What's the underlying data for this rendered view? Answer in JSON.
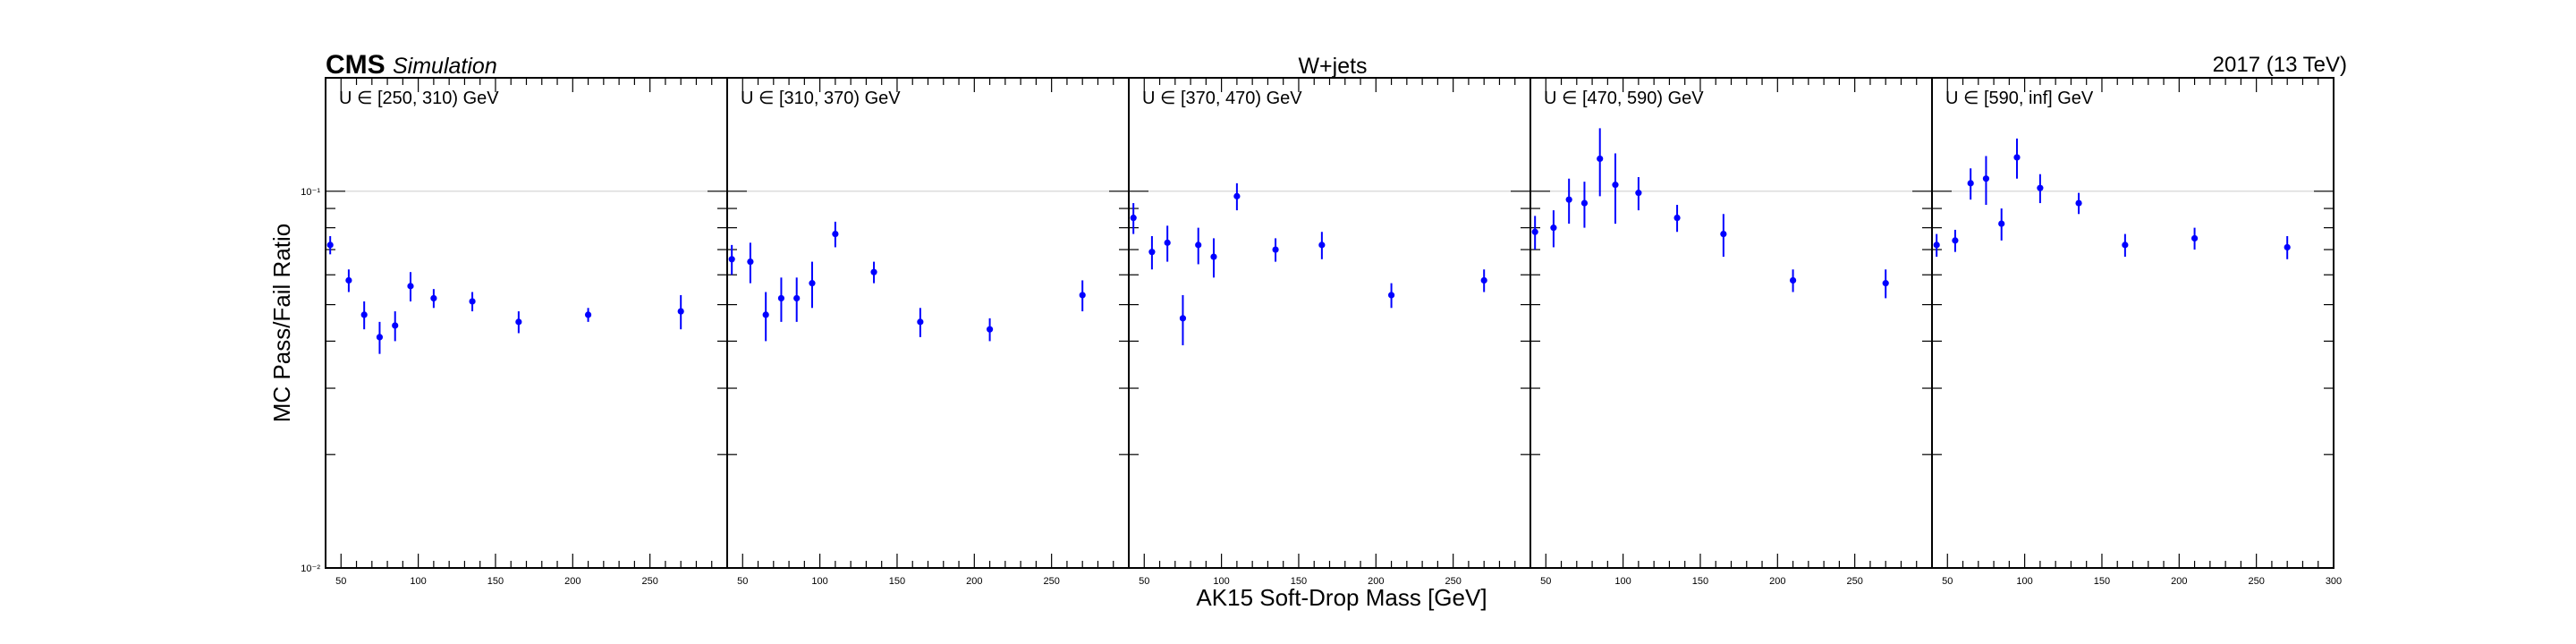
{
  "header": {
    "experiment": "CMS",
    "label": "Simulation",
    "process": "W+jets",
    "lumi": "2017 (13 TeV)"
  },
  "chart_data": {
    "type": "scatter",
    "xlabel": "AK15 Soft-Drop Mass [GeV]",
    "ylabel": "MC Pass/Fail Ratio",
    "xlim": [
      40,
      300
    ],
    "ylim": [
      0.01,
      0.2
    ],
    "yscale": "log",
    "grid": "horizontal line at 0.1",
    "y_tick_labels": [
      "10⁻²",
      "10⁻¹"
    ],
    "x_tick_labels": [
      "50",
      "100",
      "150",
      "200",
      "250"
    ],
    "last_x_tick_label": "300",
    "marker_color": "#0000ff",
    "panels": [
      {
        "label": "U ∈ [250, 310) GeV",
        "x": [
          43,
          55,
          65,
          75,
          85,
          95,
          110,
          135,
          165,
          210,
          270
        ],
        "y": [
          0.072,
          0.058,
          0.047,
          0.041,
          0.044,
          0.056,
          0.052,
          0.051,
          0.045,
          0.047,
          0.048
        ],
        "yerr": [
          0.004,
          0.004,
          0.004,
          0.004,
          0.004,
          0.005,
          0.003,
          0.003,
          0.003,
          0.002,
          0.005
        ]
      },
      {
        "label": "U ∈ [310, 370) GeV",
        "x": [
          43,
          55,
          65,
          75,
          85,
          95,
          110,
          135,
          165,
          210,
          270
        ],
        "y": [
          0.066,
          0.065,
          0.047,
          0.052,
          0.052,
          0.057,
          0.077,
          0.061,
          0.045,
          0.043,
          0.053
        ],
        "yerr": [
          0.006,
          0.008,
          0.007,
          0.007,
          0.007,
          0.008,
          0.006,
          0.004,
          0.004,
          0.003,
          0.005
        ]
      },
      {
        "label": "U ∈ [370, 470) GeV",
        "x": [
          43,
          55,
          65,
          75,
          85,
          95,
          110,
          135,
          165,
          210,
          270
        ],
        "y": [
          0.085,
          0.069,
          0.073,
          0.046,
          0.072,
          0.067,
          0.097,
          0.07,
          0.072,
          0.053,
          0.058
        ],
        "yerr": [
          0.008,
          0.007,
          0.008,
          0.007,
          0.008,
          0.008,
          0.008,
          0.005,
          0.006,
          0.004,
          0.004
        ]
      },
      {
        "label": "U ∈ [470, 590) GeV",
        "x": [
          43,
          55,
          65,
          75,
          85,
          95,
          110,
          135,
          165,
          210,
          270
        ],
        "y": [
          0.078,
          0.08,
          0.095,
          0.093,
          0.122,
          0.104,
          0.099,
          0.085,
          0.077,
          0.058,
          0.057
        ],
        "yerr": [
          0.008,
          0.009,
          0.013,
          0.013,
          0.025,
          0.022,
          0.01,
          0.007,
          0.01,
          0.004,
          0.005
        ]
      },
      {
        "label": "U ∈ [590, inf] GeV",
        "x": [
          43,
          55,
          65,
          75,
          85,
          95,
          110,
          135,
          165,
          210,
          270
        ],
        "y": [
          0.072,
          0.074,
          0.105,
          0.108,
          0.082,
          0.123,
          0.102,
          0.093,
          0.072,
          0.075,
          0.071
        ],
        "yerr": [
          0.005,
          0.005,
          0.01,
          0.016,
          0.008,
          0.015,
          0.009,
          0.006,
          0.005,
          0.005,
          0.005
        ]
      }
    ]
  }
}
